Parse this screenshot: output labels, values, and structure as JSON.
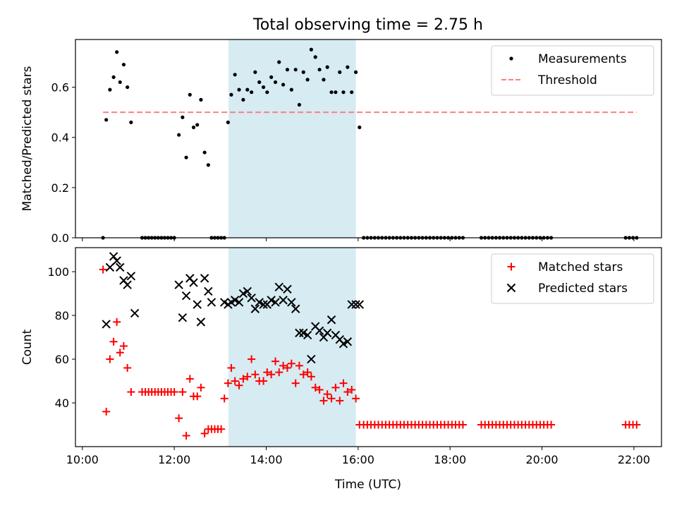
{
  "chart_data": {
    "type": "scatter",
    "title": "Total observing time = 2.75 h",
    "xlabel": "Time (UTC)",
    "xlim": [
      9.85,
      22.6
    ],
    "xticks": [
      10,
      12,
      14,
      16,
      18,
      20,
      22
    ],
    "xtick_labels": [
      "10:00",
      "12:00",
      "14:00",
      "16:00",
      "18:00",
      "20:00",
      "22:00"
    ],
    "highlight_span": [
      13.18,
      15.95
    ],
    "highlight_color": "#add8e6",
    "panels": [
      {
        "ylabel": "Matched/Predicted stars",
        "ylim": [
          0,
          0.79
        ],
        "yticks": [
          0.0,
          0.2,
          0.4,
          0.6
        ],
        "ytick_labels": [
          "0.0",
          "0.2",
          "0.4",
          "0.6"
        ],
        "legend_position": "top-right",
        "series": [
          {
            "name": "Measurements",
            "marker": "dot",
            "color": "#000000",
            "x": [
              10.45,
              10.52,
              10.6,
              10.68,
              10.75,
              10.82,
              10.9,
              10.98,
              11.06,
              11.3,
              11.37,
              11.44,
              11.51,
              11.58,
              11.65,
              11.72,
              11.79,
              11.86,
              11.93,
              12.0,
              12.1,
              12.18,
              12.26,
              12.34,
              12.42,
              12.5,
              12.58,
              12.66,
              12.74,
              12.81,
              12.88,
              12.95,
              13.02,
              13.09,
              13.17,
              13.24,
              13.32,
              13.41,
              13.5,
              13.59,
              13.68,
              13.76,
              13.85,
              13.94,
              14.02,
              14.11,
              14.2,
              14.28,
              14.37,
              14.46,
              14.55,
              14.64,
              14.72,
              14.81,
              14.9,
              14.98,
              15.07,
              15.16,
              15.25,
              15.33,
              15.42,
              15.51,
              15.6,
              15.68,
              15.77,
              15.86,
              15.95,
              16.03,
              16.12,
              16.2,
              16.28,
              16.36,
              16.44,
              16.52,
              16.6,
              16.68,
              16.76,
              16.84,
              16.92,
              17.0,
              17.08,
              17.16,
              17.24,
              17.32,
              17.4,
              17.48,
              17.56,
              17.64,
              17.72,
              17.8,
              17.88,
              17.96,
              18.04,
              18.12,
              18.2,
              18.28,
              18.68,
              18.76,
              18.84,
              18.92,
              19.0,
              19.08,
              19.16,
              19.24,
              19.32,
              19.4,
              19.48,
              19.56,
              19.64,
              19.72,
              19.8,
              19.88,
              19.96,
              20.04,
              20.12,
              20.2,
              21.82,
              21.9,
              21.98,
              22.06
            ],
            "y": [
              0.0,
              0.47,
              0.59,
              0.64,
              0.74,
              0.62,
              0.69,
              0.6,
              0.46,
              0.0,
              0.0,
              0.0,
              0.0,
              0.0,
              0.0,
              0.0,
              0.0,
              0.0,
              0.0,
              0.0,
              0.41,
              0.48,
              0.32,
              0.57,
              0.44,
              0.45,
              0.55,
              0.34,
              0.29,
              0.0,
              0.0,
              0.0,
              0.0,
              0.0,
              0.46,
              0.57,
              0.65,
              0.59,
              0.55,
              0.59,
              0.58,
              0.66,
              0.62,
              0.6,
              0.58,
              0.64,
              0.62,
              0.7,
              0.61,
              0.67,
              0.59,
              0.67,
              0.53,
              0.66,
              0.63,
              0.75,
              0.72,
              0.67,
              0.63,
              0.68,
              0.58,
              0.58,
              0.66,
              0.58,
              0.68,
              0.58,
              0.66,
              0.44,
              0.0,
              0.0,
              0.0,
              0.0,
              0.0,
              0.0,
              0.0,
              0.0,
              0.0,
              0.0,
              0.0,
              0.0,
              0.0,
              0.0,
              0.0,
              0.0,
              0.0,
              0.0,
              0.0,
              0.0,
              0.0,
              0.0,
              0.0,
              0.0,
              0.0,
              0.0,
              0.0,
              0.0,
              0.0,
              0.0,
              0.0,
              0.0,
              0.0,
              0.0,
              0.0,
              0.0,
              0.0,
              0.0,
              0.0,
              0.0,
              0.0,
              0.0,
              0.0,
              0.0,
              0.0,
              0.0,
              0.0,
              0.0,
              0.0,
              0.0,
              0.0,
              0.0
            ]
          },
          {
            "name": "Threshold",
            "marker": "dashed-line",
            "color": "#ff7f7f",
            "x": [
              10.45,
              22.06
            ],
            "y": [
              0.5,
              0.5
            ]
          }
        ]
      },
      {
        "ylabel": "Count",
        "ylim": [
          20,
          111
        ],
        "yticks": [
          40,
          60,
          80,
          100
        ],
        "ytick_labels": [
          "40",
          "60",
          "80",
          "100"
        ],
        "legend_position": "top-right",
        "series": [
          {
            "name": "Matched stars",
            "marker": "plus",
            "color": "#ff0000",
            "x": [
              10.45,
              10.52,
              10.6,
              10.68,
              10.75,
              10.82,
              10.9,
              10.98,
              11.06,
              11.3,
              11.37,
              11.44,
              11.51,
              11.58,
              11.65,
              11.72,
              11.79,
              11.86,
              11.93,
              12.0,
              12.1,
              12.18,
              12.26,
              12.34,
              12.42,
              12.5,
              12.58,
              12.66,
              12.74,
              12.81,
              12.88,
              12.95,
              13.02,
              13.09,
              13.17,
              13.24,
              13.32,
              13.41,
              13.5,
              13.59,
              13.68,
              13.76,
              13.85,
              13.94,
              14.02,
              14.11,
              14.2,
              14.28,
              14.37,
              14.46,
              14.55,
              14.64,
              14.72,
              14.81,
              14.9,
              14.98,
              15.07,
              15.16,
              15.25,
              15.33,
              15.42,
              15.51,
              15.6,
              15.68,
              15.77,
              15.86,
              15.95,
              16.03,
              16.12,
              16.2,
              16.28,
              16.36,
              16.44,
              16.52,
              16.6,
              16.68,
              16.76,
              16.84,
              16.92,
              17.0,
              17.08,
              17.16,
              17.24,
              17.32,
              17.4,
              17.48,
              17.56,
              17.64,
              17.72,
              17.8,
              17.88,
              17.96,
              18.04,
              18.12,
              18.2,
              18.28,
              18.68,
              18.76,
              18.84,
              18.92,
              19.0,
              19.08,
              19.16,
              19.24,
              19.32,
              19.4,
              19.48,
              19.56,
              19.64,
              19.72,
              19.8,
              19.88,
              19.96,
              20.04,
              20.12,
              20.2,
              21.82,
              21.9,
              21.98,
              22.06
            ],
            "y": [
              101,
              36,
              60,
              68,
              77,
              63,
              66,
              56,
              45,
              45,
              45,
              45,
              45,
              45,
              45,
              45,
              45,
              45,
              45,
              45,
              33,
              45,
              25,
              51,
              43,
              43,
              47,
              26,
              28,
              28,
              28,
              28,
              28,
              42,
              49,
              56,
              50,
              48,
              51,
              52,
              60,
              53,
              50,
              50,
              54,
              53,
              59,
              54,
              57,
              56,
              58,
              49,
              57,
              53,
              54,
              52,
              47,
              46,
              41,
              44,
              42,
              47,
              41,
              49,
              45,
              46,
              42,
              30,
              30,
              30,
              30,
              30,
              30,
              30,
              30,
              30,
              30,
              30,
              30,
              30,
              30,
              30,
              30,
              30,
              30,
              30,
              30,
              30,
              30,
              30,
              30,
              30,
              30,
              30,
              30,
              30,
              30,
              30,
              30,
              30,
              30,
              30,
              30,
              30,
              30,
              30,
              30,
              30,
              30,
              30,
              30,
              30,
              30,
              30,
              30,
              30,
              30,
              30,
              30,
              30
            ]
          },
          {
            "name": "Predicted stars",
            "marker": "x",
            "color": "#000000",
            "x": [
              10.52,
              10.6,
              10.68,
              10.75,
              10.82,
              10.9,
              10.98,
              11.06,
              11.14,
              12.1,
              12.18,
              12.26,
              12.34,
              12.42,
              12.5,
              12.58,
              12.66,
              12.74,
              12.81,
              13.09,
              13.17,
              13.24,
              13.32,
              13.41,
              13.5,
              13.59,
              13.68,
              13.76,
              13.85,
              13.94,
              14.02,
              14.11,
              14.2,
              14.28,
              14.37,
              14.46,
              14.55,
              14.64,
              14.72,
              14.81,
              14.9,
              14.98,
              15.07,
              15.16,
              15.25,
              15.33,
              15.42,
              15.51,
              15.6,
              15.68,
              15.77,
              15.86,
              15.95,
              16.03
            ],
            "y": [
              76,
              102,
              107,
              105,
              102,
              96,
              94,
              98,
              81,
              94,
              79,
              89,
              97,
              95,
              85,
              77,
              97,
              91,
              86,
              86,
              85,
              86,
              87,
              86,
              90,
              91,
              88,
              83,
              86,
              85,
              85,
              87,
              86,
              93,
              87,
              92,
              86,
              83,
              72,
              72,
              71,
              60,
              75,
              73,
              70,
              72,
              78,
              71,
              69,
              67,
              68,
              85,
              85,
              85
            ]
          }
        ]
      }
    ]
  }
}
